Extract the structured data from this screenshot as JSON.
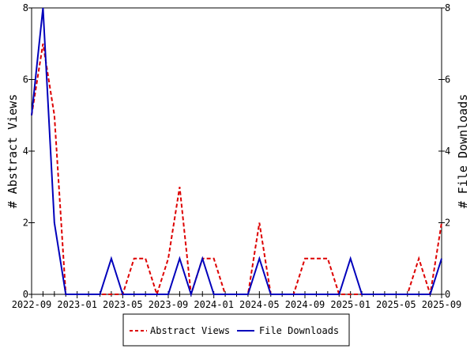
{
  "chart_data": {
    "type": "line",
    "title": "",
    "xlabel": "",
    "ylabel": "# Abstract Views",
    "y2label": "# File Downloads",
    "ylim": [
      0,
      8
    ],
    "y2lim": [
      0,
      8
    ],
    "yticks": [
      "0",
      "2",
      "4",
      "6",
      "8"
    ],
    "xtick_labels": [
      "2022-09",
      "2023-01",
      "2023-05",
      "2023-09",
      "2024-01",
      "2024-05",
      "2024-09",
      "2025-01",
      "2025-05",
      "2025-09"
    ],
    "x_months": 37,
    "series": [
      {
        "name": "Abstract Views",
        "color": "#dd0000",
        "dashed": true,
        "values": [
          5,
          7,
          5,
          0,
          0,
          0,
          0,
          0,
          0,
          1,
          1,
          0,
          1,
          3,
          0,
          1,
          1,
          0,
          0,
          0,
          2,
          0,
          0,
          0,
          1,
          1,
          1,
          0,
          0,
          0,
          0,
          0,
          0,
          0,
          1,
          0,
          2
        ]
      },
      {
        "name": "File Downloads",
        "color": "#0000bb",
        "dashed": false,
        "values": [
          5,
          8,
          2,
          0,
          0,
          0,
          0,
          1,
          0,
          0,
          0,
          0,
          0,
          1,
          0,
          1,
          0,
          0,
          0,
          0,
          1,
          0,
          0,
          0,
          0,
          0,
          0,
          0,
          1,
          0,
          0,
          0,
          0,
          0,
          0,
          0,
          1
        ]
      }
    ],
    "legend": {
      "placement": "bottom",
      "labels": [
        "Abstract Views",
        "File Downloads"
      ]
    }
  }
}
